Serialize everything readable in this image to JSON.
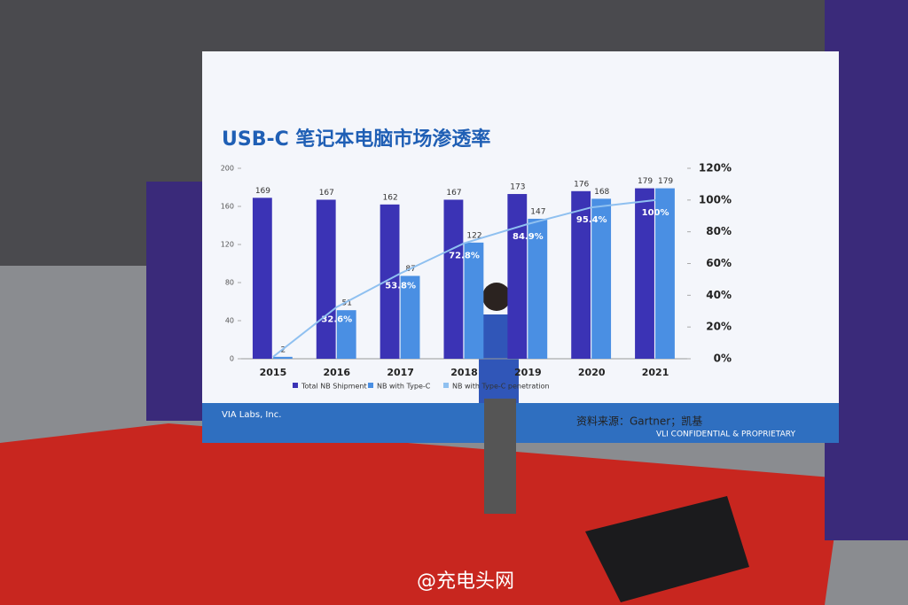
{
  "chart_data": {
    "type": "bar",
    "title": "USB-C 笔记本电脑市场渗透率",
    "categories": [
      "2015",
      "2016",
      "2017",
      "2018",
      "2019",
      "2020",
      "2021"
    ],
    "series": [
      {
        "name": "Total NB Shipment",
        "color": "#3b33b5",
        "values": [
          169,
          167,
          162,
          167,
          173,
          176,
          179
        ]
      },
      {
        "name": "NB with Type-C",
        "color": "#4a8fe3",
        "values": [
          2,
          51,
          87,
          122,
          147,
          168,
          179
        ]
      },
      {
        "name": "NB with Type-C penetration",
        "color": "#8fc0f0",
        "axis": "y2",
        "values": [
          1.2,
          32.6,
          53.8,
          72.8,
          84.9,
          95.4,
          100
        ],
        "value_labels": [
          null,
          "32.6%",
          "53.8%",
          "72.8%",
          "84.9%",
          "95.4%",
          "100%"
        ]
      }
    ],
    "ylim": [
      0,
      200
    ],
    "yticks": [
      0,
      40,
      80,
      120,
      160,
      200
    ],
    "y2lim": [
      0,
      120
    ],
    "y2ticks": [
      {
        "value": 0,
        "label": "0%"
      },
      {
        "value": 20,
        "label": "20%"
      },
      {
        "value": 40,
        "label": "40%"
      },
      {
        "value": 60,
        "label": "60%"
      },
      {
        "value": 80,
        "label": "80%"
      },
      {
        "value": 100,
        "label": "100%"
      },
      {
        "value": 120,
        "label": "120%"
      }
    ],
    "source": "资料来源：Gartner；凯基",
    "company": "VIA Labs, Inc.",
    "footer": "VLI CONFIDENTIAL & PROPRIETARY",
    "watermark": "@充电头网"
  }
}
